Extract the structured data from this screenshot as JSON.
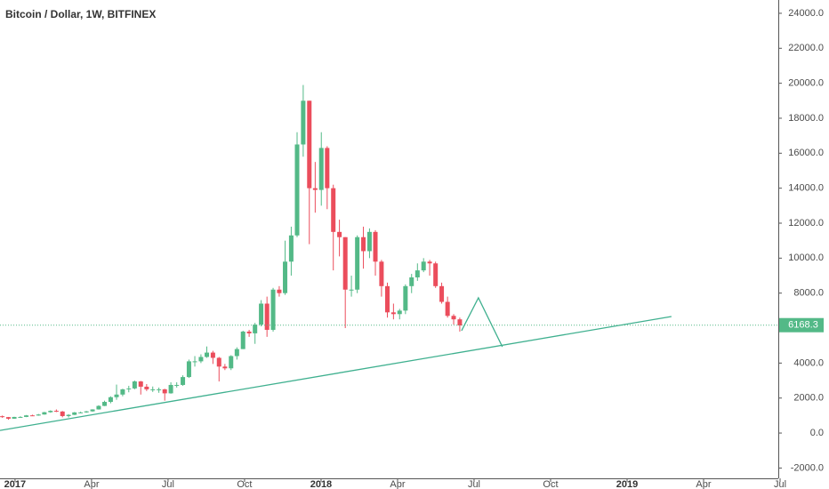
{
  "chart_data": {
    "type": "candlestick",
    "title": "Bitcoin / Dollar, 1W, BITFINEX",
    "xlim": [
      -0.59,
      29.93
    ],
    "ylim": [
      -2590,
      24760
    ],
    "xticks": [
      {
        "value": 0,
        "label": "2017"
      },
      {
        "value": 3,
        "label": "Apr"
      },
      {
        "value": 6,
        "label": "Jul"
      },
      {
        "value": 9,
        "label": "Oct"
      },
      {
        "value": 12,
        "label": "2018"
      },
      {
        "value": 15,
        "label": "Apr"
      },
      {
        "value": 18,
        "label": "Jul"
      },
      {
        "value": 21,
        "label": "Oct"
      },
      {
        "value": 24,
        "label": "2019"
      },
      {
        "value": 27,
        "label": "Apr"
      },
      {
        "value": 30,
        "label": "Jul"
      }
    ],
    "yticks": [
      {
        "value": -2000,
        "label": "-2000.0"
      },
      {
        "value": 0,
        "label": "0.0"
      },
      {
        "value": 2000,
        "label": "2000.0"
      },
      {
        "value": 4000,
        "label": "4000.0"
      },
      {
        "value": 6000,
        "label": "6000.0"
      },
      {
        "value": 8000,
        "label": "8000.0"
      },
      {
        "value": 10000,
        "label": "10000.0"
      },
      {
        "value": 12000,
        "label": "12000.0"
      },
      {
        "value": 14000,
        "label": "14000.0"
      },
      {
        "value": 16000,
        "label": "16000.0"
      },
      {
        "value": 18000,
        "label": "18000.0"
      },
      {
        "value": 20000,
        "label": "20000.0"
      },
      {
        "value": 22000,
        "label": "22000.0"
      },
      {
        "value": 24000,
        "label": "24000.0"
      }
    ],
    "up_color": "#53b987",
    "down_color": "#eb4d5c",
    "x": [
      -0.5,
      -0.26,
      -0.03,
      0.21,
      0.44,
      0.68,
      0.92,
      1.15,
      1.39,
      1.62,
      1.86,
      2.1,
      2.33,
      2.57,
      2.8,
      3.04,
      3.28,
      3.51,
      3.75,
      3.98,
      4.22,
      4.46,
      4.69,
      4.93,
      5.16,
      5.4,
      5.64,
      5.87,
      6.11,
      6.34,
      6.58,
      6.82,
      7.05,
      7.29,
      7.52,
      7.76,
      8.0,
      8.23,
      8.47,
      8.7,
      8.94,
      9.18,
      9.41,
      9.65,
      9.88,
      10.12,
      10.36,
      10.59,
      10.83,
      11.06,
      11.3,
      11.54,
      11.77,
      12.01,
      12.24,
      12.48,
      12.72,
      12.95,
      13.19,
      13.42,
      13.66,
      13.9,
      14.13,
      14.37,
      14.6,
      14.84,
      15.08,
      15.31,
      15.55,
      15.78,
      16.02,
      16.26,
      16.49,
      16.73,
      16.96,
      17.2,
      17.44
    ],
    "open": [
      960,
      910,
      820,
      920,
      920,
      1010,
      1000,
      1060,
      1190,
      1270,
      1230,
      970,
      1040,
      1180,
      1180,
      1240,
      1350,
      1550,
      1780,
      2050,
      2200,
      2500,
      2550,
      2950,
      2650,
      2500,
      2500,
      2500,
      2270,
      2750,
      2750,
      3200,
      4100,
      4100,
      4350,
      4600,
      4300,
      3800,
      3700,
      4400,
      4800,
      5800,
      5700,
      6200,
      7400,
      5900,
      8200,
      8000,
      9800,
      11300,
      16500,
      19000,
      14000,
      13900,
      16300,
      14000,
      11500,
      11200,
      8200,
      8200,
      11200,
      10400,
      11500,
      9800,
      8400,
      6900,
      6800,
      7000,
      8400,
      8900,
      9300,
      9800,
      9700,
      8400,
      7500,
      6700,
      6500
    ],
    "high": [
      1000,
      920,
      930,
      960,
      1030,
      1050,
      1090,
      1210,
      1300,
      1350,
      1260,
      1080,
      1200,
      1220,
      1260,
      1360,
      1590,
      1850,
      2100,
      2770,
      2530,
      2700,
      3000,
      2980,
      2800,
      2660,
      2600,
      2530,
      2900,
      2900,
      3300,
      4200,
      4400,
      4500,
      4950,
      4700,
      4350,
      3950,
      4450,
      4900,
      5850,
      5900,
      6300,
      7600,
      7800,
      8300,
      8400,
      11000,
      11800,
      17200,
      19900,
      19000,
      15500,
      17200,
      16400,
      14200,
      12200,
      11200,
      9000,
      11300,
      11800,
      11700,
      11600,
      9900,
      8600,
      7400,
      7100,
      8500,
      9100,
      9700,
      10000,
      9900,
      9800,
      8600,
      7800,
      6800,
      6600
    ],
    "low": [
      870,
      760,
      810,
      890,
      910,
      970,
      990,
      1050,
      1160,
      1200,
      900,
      890,
      1030,
      1140,
      1160,
      1220,
      1340,
      1540,
      1700,
      1900,
      2100,
      2330,
      2500,
      2200,
      2400,
      2350,
      2300,
      1850,
      2250,
      2600,
      2700,
      3150,
      3800,
      4000,
      4300,
      3950,
      2950,
      3600,
      3600,
      4200,
      4800,
      5500,
      5100,
      6100,
      5500,
      5800,
      7800,
      7900,
      9000,
      11200,
      15800,
      10800,
      12600,
      13000,
      12800,
      9300,
      10100,
      6000,
      7800,
      8000,
      9400,
      10000,
      9000,
      7800,
      6600,
      6500,
      6500,
      6800,
      8000,
      8700,
      9200,
      9000,
      8300,
      7400,
      6600,
      6200,
      5800
    ],
    "close": [
      910,
      820,
      920,
      920,
      1010,
      1000,
      1060,
      1190,
      1270,
      1230,
      970,
      1040,
      1180,
      1180,
      1240,
      1350,
      1550,
      1780,
      2050,
      2200,
      2500,
      2550,
      2950,
      2650,
      2500,
      2500,
      2500,
      2270,
      2750,
      2750,
      3200,
      4100,
      4100,
      4350,
      4600,
      4300,
      3800,
      3700,
      4400,
      4800,
      5800,
      5700,
      6200,
      7400,
      5900,
      8200,
      8000,
      9800,
      11300,
      16500,
      19000,
      14000,
      13900,
      16300,
      14000,
      11500,
      11200,
      8200,
      8200,
      11200,
      10400,
      11500,
      9800,
      8400,
      6900,
      6800,
      7000,
      8400,
      8900,
      9300,
      9800,
      9700,
      8400,
      7500,
      6700,
      6500,
      6150
    ],
    "drawings": [
      {
        "color": "#3fb08f",
        "x": [
          -0.59,
          25.74
        ],
        "y": [
          150,
          6660
        ]
      },
      {
        "color": "#3fb08f",
        "x": [
          17.51,
          18.17,
          19.11
        ],
        "y": [
          5850,
          7730,
          4930
        ]
      }
    ],
    "last_price": 6168.3,
    "last_price_color": "#53b987"
  }
}
